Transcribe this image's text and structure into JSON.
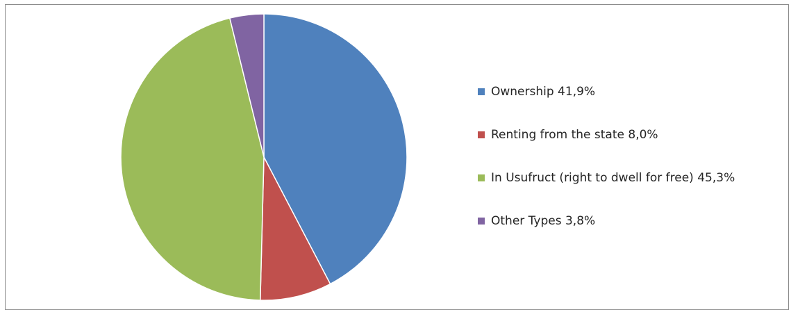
{
  "chart_data": {
    "type": "pie",
    "start_angle_deg": 0,
    "direction": "clockwise",
    "legend_position": "right",
    "slices": [
      {
        "label": "Ownership 41,9%",
        "value": 41.9,
        "color": "#4F81BD"
      },
      {
        "label": "Renting from the state 8,0%",
        "value": 8.0,
        "color": "#C0504D"
      },
      {
        "label": "In Usufruct (right to dwell for free) 45,3%",
        "value": 45.3,
        "color": "#9BBB59"
      },
      {
        "label": "Other Types 3,8%",
        "value": 3.8,
        "color": "#8064A2"
      }
    ]
  }
}
